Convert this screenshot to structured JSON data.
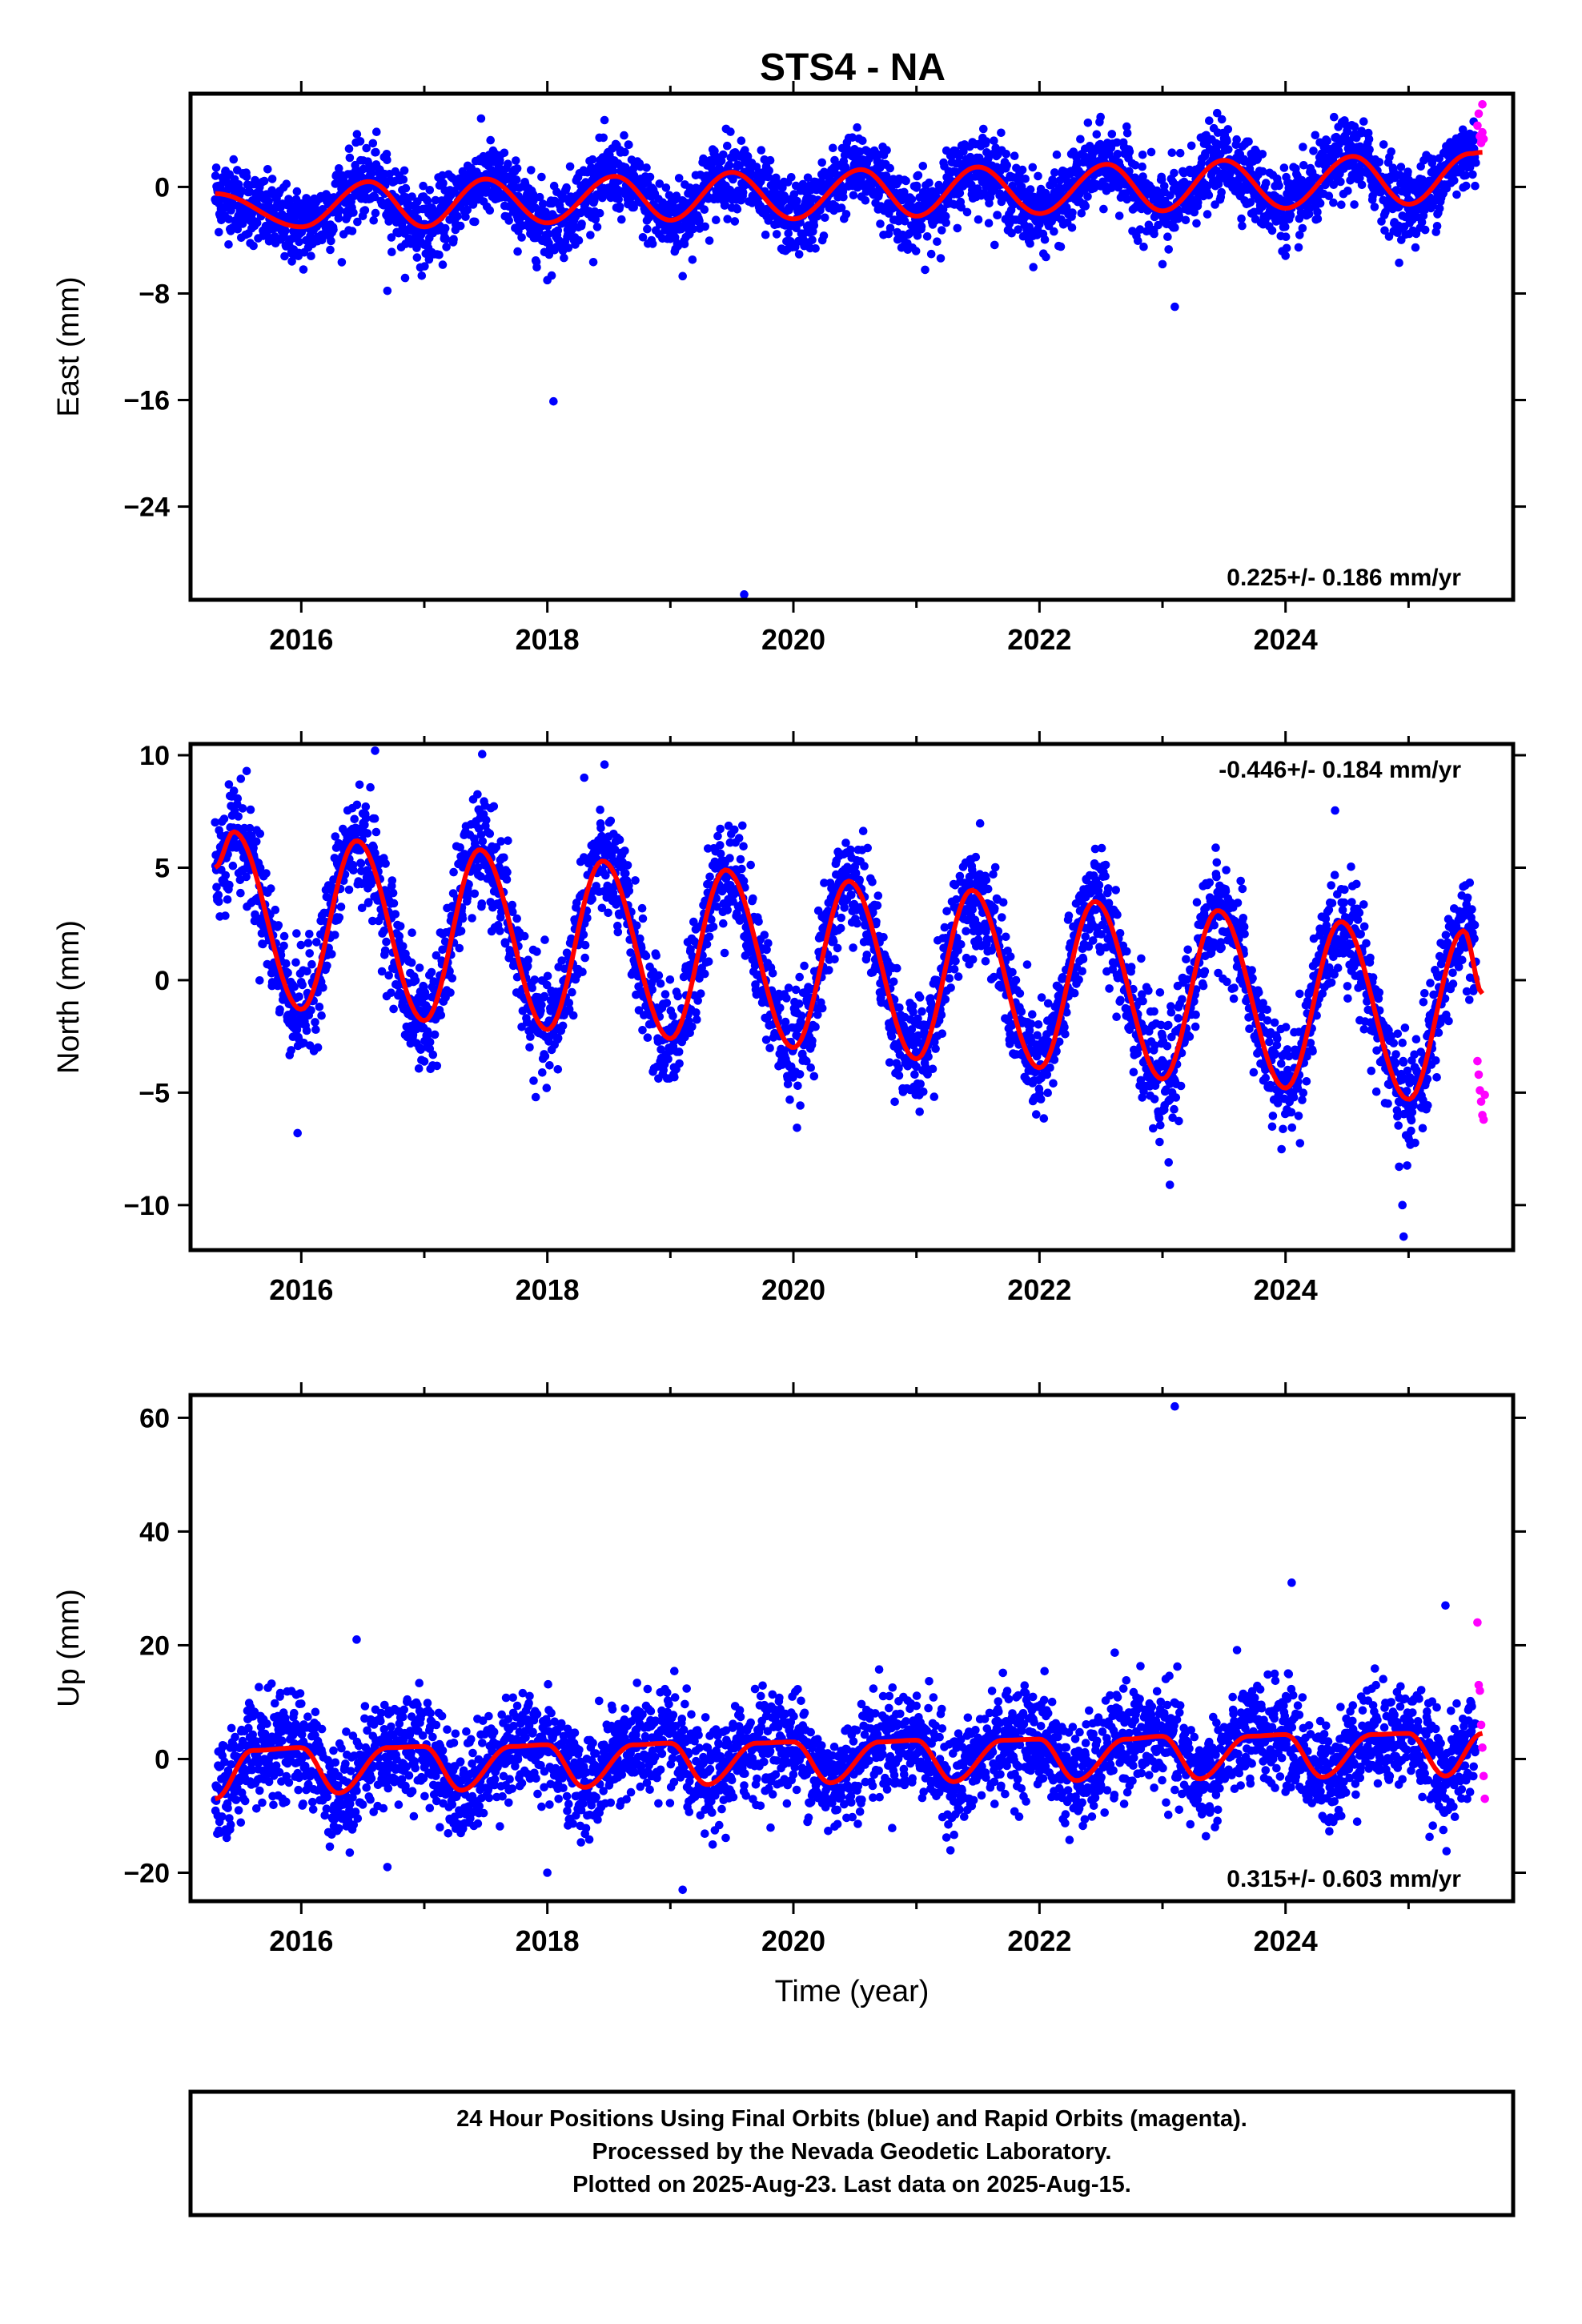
{
  "title": "STS4 - NA",
  "colors": {
    "final": "#0000ff",
    "rapid": "#ff00ff",
    "model": "#ff0000"
  },
  "chart_data": [
    {
      "type": "scatter",
      "id": "east",
      "ylabel": "East (mm)",
      "xlabel": "",
      "xlim": [
        2015.1,
        2025.85
      ],
      "ylim": [
        -31,
        7
      ],
      "xticks": [
        2016,
        2018,
        2020,
        2022,
        2024
      ],
      "yticks": [
        0,
        -8,
        -16,
        -24
      ],
      "rate_text": "0.225+/- 0.186 mm/yr",
      "rate_position": "bottom-right",
      "series": [
        {
          "name": "Final Orbits",
          "color": "blue",
          "start": 2015.3,
          "end": 2025.55,
          "mean": 0.0,
          "trend_per_yr": 0.225,
          "annual_amp": 1.8,
          "annual_peak_phase": 0.55,
          "scatter_sd": 1.4,
          "points_per_yr": 340
        },
        {
          "name": "Rapid Orbits",
          "color": "magenta",
          "x": [
            2025.56,
            2025.57,
            2025.58,
            2025.59,
            2025.6,
            2025.6,
            2025.61
          ],
          "y": [
            4.6,
            5.5,
            3.8,
            3.3,
            6.2,
            4.1,
            3.6
          ]
        }
      ],
      "outliers": {
        "x": [
          2016.7,
          2018.05,
          2019.6,
          2023.1,
          2018.0,
          2019.1,
          2023.0
        ],
        "y": [
          -7.8,
          -16.1,
          -30.6,
          -9.0,
          -7.0,
          -6.7,
          -5.8
        ]
      },
      "model": {
        "color": "red",
        "x": [
          2015.3,
          2016.0,
          2016.55,
          2017.0,
          2017.5,
          2018.0,
          2018.55,
          2019.0,
          2019.5,
          2020.0,
          2020.55,
          2021.0,
          2021.5,
          2022.0,
          2022.55,
          2023.0,
          2023.5,
          2024.0,
          2024.55,
          2025.0,
          2025.5,
          2025.6
        ],
        "y": [
          -0.5,
          -3.0,
          0.4,
          -3.0,
          0.6,
          -2.7,
          0.8,
          -2.5,
          1.1,
          -2.4,
          1.3,
          -2.2,
          1.5,
          -2.0,
          1.7,
          -1.8,
          2.0,
          -1.6,
          2.3,
          -1.3,
          2.5,
          2.6
        ]
      }
    },
    {
      "type": "scatter",
      "id": "north",
      "ylabel": "North (mm)",
      "xlabel": "",
      "xlim": [
        2015.1,
        2025.85
      ],
      "ylim": [
        -12,
        10.5
      ],
      "xticks": [
        2016,
        2018,
        2020,
        2022,
        2024
      ],
      "yticks": [
        10,
        5,
        0,
        -5,
        -10
      ],
      "rate_text": "-0.446+/- 0.184 mm/yr",
      "rate_position": "top-right",
      "series": [
        {
          "name": "Final Orbits",
          "color": "blue",
          "start": 2015.3,
          "end": 2025.55,
          "mean": 2.4,
          "trend_per_yr": -0.446,
          "annual_amp": 4.0,
          "annual_peak_phase": 0.45,
          "scatter_sd": 1.2,
          "points_per_yr": 340
        },
        {
          "name": "Rapid Orbits",
          "color": "magenta",
          "x": [
            2025.56,
            2025.57,
            2025.58,
            2025.59,
            2025.6,
            2025.61,
            2025.62
          ],
          "y": [
            -3.6,
            -4.2,
            -4.9,
            -5.4,
            -6.0,
            -6.2,
            -5.1
          ]
        }
      ],
      "outliers": {
        "x": [
          2015.97,
          2023.05,
          2023.06,
          2024.95,
          2024.96,
          2016.6,
          2018.3
        ],
        "y": [
          -6.8,
          -8.1,
          -9.1,
          -10.0,
          -11.4,
          10.2,
          9.0
        ]
      },
      "model": {
        "color": "red",
        "x": [
          2015.3,
          2015.45,
          2016.0,
          2016.45,
          2017.0,
          2017.45,
          2018.0,
          2018.45,
          2019.0,
          2019.45,
          2020.0,
          2020.45,
          2021.0,
          2021.45,
          2022.0,
          2022.45,
          2023.0,
          2023.45,
          2024.0,
          2024.45,
          2025.0,
          2025.45,
          2025.6
        ],
        "y": [
          5.0,
          6.6,
          -1.3,
          6.2,
          -1.8,
          5.8,
          -2.2,
          5.3,
          -2.6,
          4.9,
          -3.0,
          4.4,
          -3.5,
          4.0,
          -3.9,
          3.5,
          -4.4,
          3.1,
          -4.8,
          2.6,
          -5.3,
          2.2,
          -0.6
        ]
      }
    },
    {
      "type": "scatter",
      "id": "up",
      "ylabel": "Up (mm)",
      "xlabel": "Time (year)",
      "xlim": [
        2015.1,
        2025.85
      ],
      "ylim": [
        -25,
        64
      ],
      "xticks": [
        2016,
        2018,
        2020,
        2022,
        2024
      ],
      "yticks": [
        60,
        40,
        20,
        0,
        -20
      ],
      "rate_text": "0.315+/- 0.603 mm/yr",
      "rate_position": "bottom-right",
      "series": [
        {
          "name": "Final Orbits",
          "color": "blue",
          "start": 2015.3,
          "end": 2025.55,
          "mean": 0.0,
          "trend_per_yr": 0.315,
          "annual_amp": 3.5,
          "annual_peak_phase": 0.7,
          "scatter_sd": 4.5,
          "points_per_yr": 340
        },
        {
          "name": "Rapid Orbits",
          "color": "magenta",
          "x": [
            2025.56,
            2025.57,
            2025.58,
            2025.59,
            2025.6,
            2025.61,
            2025.62
          ],
          "y": [
            24.0,
            13.0,
            12.0,
            6.0,
            2.0,
            -3.0,
            -7.0
          ]
        }
      ],
      "outliers": {
        "x": [
          2023.1,
          2024.05,
          2025.3,
          2019.1,
          2016.7,
          2016.45,
          2018.0
        ],
        "y": [
          62.0,
          31.0,
          27.0,
          -23.0,
          -19.0,
          21.0,
          -20.0
        ]
      },
      "model": {
        "color": "red",
        "x": [
          2015.3,
          2015.6,
          2016.0,
          2016.3,
          2016.7,
          2017.0,
          2017.3,
          2017.7,
          2018.0,
          2018.3,
          2018.7,
          2019.0,
          2019.3,
          2019.7,
          2020.0,
          2020.3,
          2020.7,
          2021.0,
          2021.3,
          2021.7,
          2022.0,
          2022.3,
          2022.7,
          2023.0,
          2023.3,
          2023.7,
          2024.0,
          2024.3,
          2024.7,
          2025.0,
          2025.3,
          2025.6
        ],
        "y": [
          -7.0,
          1.5,
          2.0,
          -6.0,
          2.0,
          2.2,
          -5.5,
          2.2,
          2.5,
          -5.0,
          2.5,
          2.8,
          -4.5,
          2.8,
          3.0,
          -4.2,
          3.0,
          3.3,
          -4.0,
          3.3,
          3.5,
          -3.8,
          3.5,
          4.0,
          -3.5,
          4.0,
          4.3,
          -3.2,
          4.3,
          4.5,
          -3.0,
          4.5
        ]
      }
    }
  ],
  "footer": {
    "lines": [
      "24 Hour Positions Using Final Orbits (blue) and Rapid Orbits (magenta).",
      "Processed by the Nevada Geodetic Laboratory.",
      "Plotted on 2025-Aug-23. Last data on 2025-Aug-15."
    ]
  }
}
